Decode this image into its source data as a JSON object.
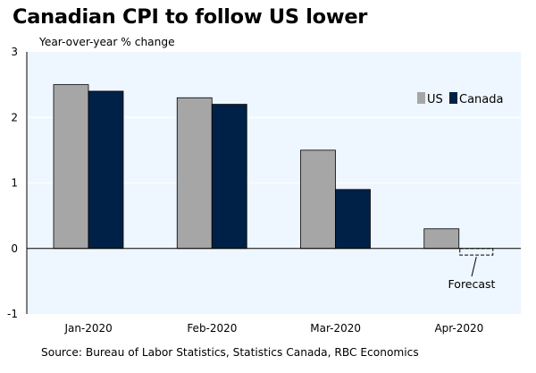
{
  "chart_data": {
    "type": "bar",
    "title": "Canadian CPI to follow US lower",
    "ylabel": "Year-over-year % change",
    "xlabel": "",
    "categories": [
      "Jan-2020",
      "Feb-2020",
      "Mar-2020",
      "Apr-2020"
    ],
    "series": [
      {
        "name": "US",
        "values": [
          2.5,
          2.3,
          1.5,
          0.3
        ]
      },
      {
        "name": "Canada",
        "values": [
          2.4,
          2.2,
          0.9,
          -0.1
        ]
      }
    ],
    "forecast": {
      "series": "Canada",
      "category": "Apr-2020",
      "label": "Forecast"
    },
    "ylim": [
      -1,
      3
    ],
    "yticks": [
      -1,
      0,
      1,
      2,
      3
    ],
    "legend_position": "top-right",
    "grid": true,
    "source": "Source: Bureau of Labor Statistics, Statistics Canada, RBC Economics",
    "colors": {
      "us": "#a6a6a6",
      "canada": "#002147",
      "plot_bg": "#eef6ff",
      "grid": "#ffffff"
    }
  }
}
